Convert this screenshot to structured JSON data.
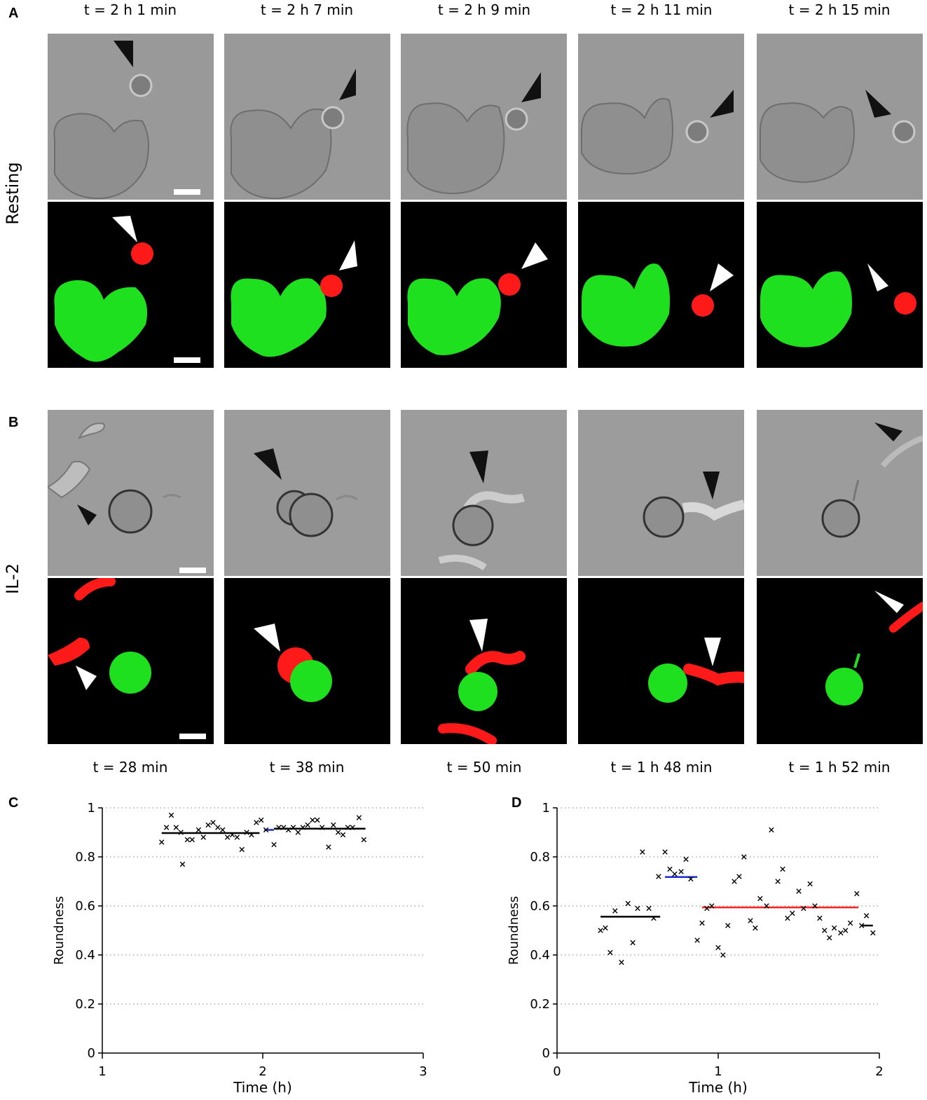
{
  "panel_letters": [
    "A",
    "B",
    "C",
    "D"
  ],
  "row_labels": {
    "resting": "Resting",
    "il2": "IL-2"
  },
  "times_A": [
    "t = 2 h 1 min",
    "t = 2 h 7 min",
    "t = 2 h 9 min",
    "t = 2 h 11 min",
    "t = 2 h 15 min"
  ],
  "times_B": [
    "t = 28 min",
    "t = 38 min",
    "t = 50 min",
    "t = 1 h 48 min",
    "t = 1 h 52 min"
  ],
  "colors": {
    "green_cell": "#1ee01e",
    "red_cell": "#ff1a1a",
    "phase_bg": "#9a9a9a",
    "mean_black": "#000000",
    "mean_blue": "#1a2bd6",
    "mean_red": "#ff2020"
  },
  "chart_data": [
    {
      "panel": "C",
      "type": "scatter",
      "xlabel": "Time (h)",
      "ylabel": "Roundness",
      "xlim": [
        1,
        3
      ],
      "ylim": [
        0,
        1
      ],
      "xticks": [
        "1",
        "2",
        "3"
      ],
      "yticks": [
        "0",
        "0.2",
        "0.4",
        "0.6",
        "0.8",
        "1"
      ],
      "grid": "horizontal dotted",
      "points": [
        [
          1.37,
          0.86
        ],
        [
          1.4,
          0.92
        ],
        [
          1.43,
          0.97
        ],
        [
          1.46,
          0.92
        ],
        [
          1.49,
          0.9
        ],
        [
          1.5,
          0.77
        ],
        [
          1.53,
          0.87
        ],
        [
          1.56,
          0.87
        ],
        [
          1.6,
          0.91
        ],
        [
          1.63,
          0.88
        ],
        [
          1.66,
          0.93
        ],
        [
          1.69,
          0.94
        ],
        [
          1.72,
          0.92
        ],
        [
          1.75,
          0.91
        ],
        [
          1.78,
          0.88
        ],
        [
          1.81,
          0.89
        ],
        [
          1.84,
          0.88
        ],
        [
          1.87,
          0.83
        ],
        [
          1.9,
          0.9
        ],
        [
          1.93,
          0.89
        ],
        [
          1.96,
          0.94
        ],
        [
          1.99,
          0.95
        ],
        [
          2.02,
          0.91
        ],
        [
          2.07,
          0.85
        ],
        [
          2.1,
          0.92
        ],
        [
          2.13,
          0.92
        ],
        [
          2.16,
          0.91
        ],
        [
          2.19,
          0.92
        ],
        [
          2.22,
          0.9
        ],
        [
          2.25,
          0.92
        ],
        [
          2.28,
          0.93
        ],
        [
          2.31,
          0.95
        ],
        [
          2.34,
          0.95
        ],
        [
          2.37,
          0.92
        ],
        [
          2.41,
          0.84
        ],
        [
          2.44,
          0.93
        ],
        [
          2.47,
          0.9
        ],
        [
          2.5,
          0.89
        ],
        [
          2.53,
          0.92
        ],
        [
          2.56,
          0.92
        ],
        [
          2.6,
          0.96
        ],
        [
          2.63,
          0.87
        ]
      ],
      "means": [
        {
          "x0": 1.37,
          "x1": 1.98,
          "y": 0.897,
          "color": "#000000"
        },
        {
          "x0": 2.01,
          "x1": 2.07,
          "y": 0.91,
          "color": "#1a2bd6"
        },
        {
          "x0": 2.07,
          "x1": 2.64,
          "y": 0.915,
          "color": "#000000"
        }
      ]
    },
    {
      "panel": "D",
      "type": "scatter",
      "xlabel": "Time (h)",
      "ylabel": "Roundness",
      "xlim": [
        0,
        2
      ],
      "ylim": [
        0,
        1
      ],
      "xticks": [
        "0",
        "1",
        "2"
      ],
      "yticks": [
        "0",
        "0.2",
        "0.4",
        "0.6",
        "0.8",
        "1"
      ],
      "grid": "horizontal dotted",
      "points": [
        [
          0.27,
          0.5
        ],
        [
          0.3,
          0.51
        ],
        [
          0.33,
          0.41
        ],
        [
          0.36,
          0.58
        ],
        [
          0.4,
          0.37
        ],
        [
          0.44,
          0.61
        ],
        [
          0.47,
          0.45
        ],
        [
          0.5,
          0.59
        ],
        [
          0.53,
          0.82
        ],
        [
          0.57,
          0.59
        ],
        [
          0.6,
          0.55
        ],
        [
          0.63,
          0.72
        ],
        [
          0.67,
          0.82
        ],
        [
          0.7,
          0.75
        ],
        [
          0.73,
          0.73
        ],
        [
          0.77,
          0.74
        ],
        [
          0.8,
          0.79
        ],
        [
          0.83,
          0.71
        ],
        [
          0.87,
          0.46
        ],
        [
          0.9,
          0.53
        ],
        [
          0.93,
          0.59
        ],
        [
          0.96,
          0.6
        ],
        [
          1.0,
          0.43
        ],
        [
          1.03,
          0.4
        ],
        [
          1.06,
          0.52
        ],
        [
          1.1,
          0.7
        ],
        [
          1.13,
          0.72
        ],
        [
          1.16,
          0.8
        ],
        [
          1.2,
          0.54
        ],
        [
          1.23,
          0.51
        ],
        [
          1.26,
          0.63
        ],
        [
          1.3,
          0.6
        ],
        [
          1.33,
          0.91
        ],
        [
          1.37,
          0.7
        ],
        [
          1.4,
          0.75
        ],
        [
          1.43,
          0.55
        ],
        [
          1.46,
          0.57
        ],
        [
          1.5,
          0.66
        ],
        [
          1.53,
          0.59
        ],
        [
          1.57,
          0.69
        ],
        [
          1.6,
          0.6
        ],
        [
          1.63,
          0.55
        ],
        [
          1.66,
          0.5
        ],
        [
          1.69,
          0.47
        ],
        [
          1.72,
          0.51
        ],
        [
          1.76,
          0.49
        ],
        [
          1.79,
          0.5
        ],
        [
          1.82,
          0.53
        ],
        [
          1.86,
          0.65
        ],
        [
          1.89,
          0.52
        ],
        [
          1.92,
          0.56
        ],
        [
          1.96,
          0.49
        ]
      ],
      "means": [
        {
          "x0": 0.27,
          "x1": 0.64,
          "y": 0.556,
          "color": "#000000"
        },
        {
          "x0": 0.67,
          "x1": 0.87,
          "y": 0.718,
          "color": "#1a2bd6"
        },
        {
          "x0": 0.9,
          "x1": 1.87,
          "y": 0.594,
          "color": "#ff2020"
        },
        {
          "x0": 1.89,
          "x1": 1.96,
          "y": 0.52,
          "color": "#000000"
        }
      ]
    }
  ]
}
